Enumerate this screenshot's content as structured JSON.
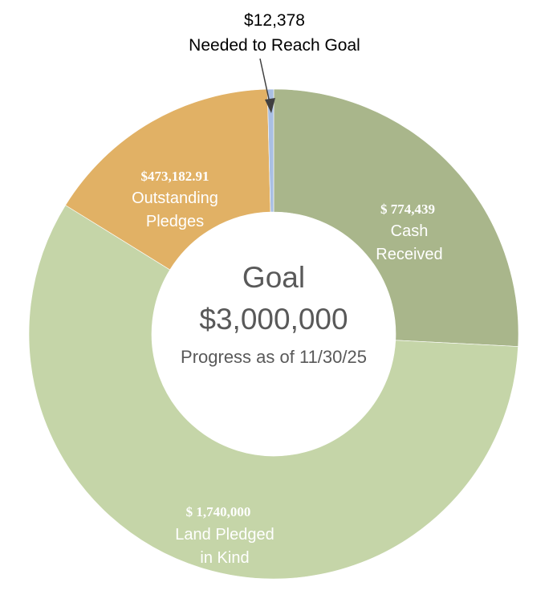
{
  "chart_data": {
    "type": "pie",
    "variant": "donut",
    "center": {
      "title": "Goal",
      "amount": "$3,000,000",
      "subtitle": "Progress as of 11/30/25"
    },
    "slices": [
      {
        "value": 774439,
        "value_label": "$ 774,439",
        "label_lines": [
          "Cash",
          "Received"
        ],
        "color": "#a9b68b"
      },
      {
        "value": 1740000,
        "value_label": "$ 1,740,000",
        "label_lines": [
          "Land Pledged",
          "in Kind"
        ],
        "color": "#c5d5a8"
      },
      {
        "value": 473182.91,
        "value_label": "$473,182.91",
        "label_lines": [
          "Outstanding",
          "Pledges"
        ],
        "color": "#e1b165"
      },
      {
        "value": 12378,
        "value_label": "$12,378",
        "label_lines": [
          "Needed to Reach Goal"
        ],
        "color": "#a9bfe3"
      }
    ],
    "text_color": "#ffffff",
    "callout_color": "#000000",
    "center_text_color": "#595959"
  }
}
